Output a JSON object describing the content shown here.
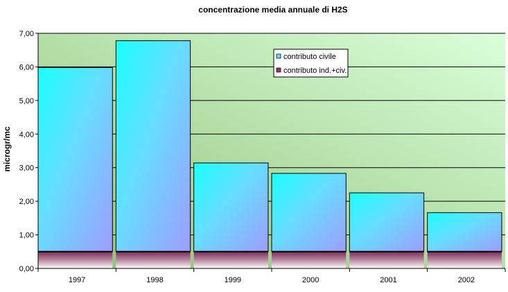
{
  "chart_data": {
    "type": "bar",
    "stacked": true,
    "title": "concentrazione media annuale di H2S",
    "xlabel": "",
    "ylabel": "microgr/mc",
    "categories": [
      "1997",
      "1998",
      "1999",
      "2000",
      "2001",
      "2002"
    ],
    "series": [
      {
        "name": "contributo ind.+civ.",
        "values": [
          0.5,
          0.5,
          0.5,
          0.5,
          0.5,
          0.5
        ],
        "color": "#993366"
      },
      {
        "name": "contributo civile",
        "values": [
          5.48,
          6.28,
          2.64,
          2.33,
          1.75,
          1.16
        ],
        "color": "#33ccff"
      }
    ],
    "ylim": [
      0,
      7
    ],
    "yticks": [
      "0,00",
      "1,00",
      "2,00",
      "3,00",
      "4,00",
      "5,00",
      "6,00",
      "7,00"
    ],
    "grid": true,
    "legend_position": "top-right",
    "legend_order": [
      "contributo civile",
      "contributo ind.+civ."
    ],
    "background": {
      "from": "#8fbf78",
      "to": "#d9ffd9"
    }
  }
}
